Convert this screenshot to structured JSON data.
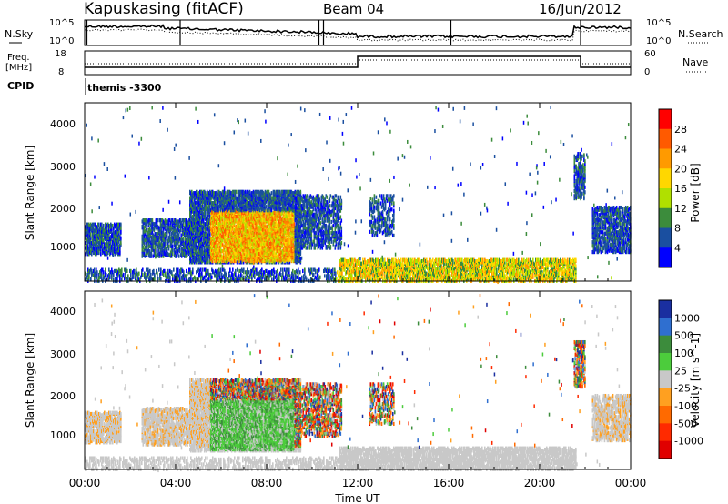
{
  "header": {
    "station": "Kapuskasing (fitACF)",
    "beam": "Beam 04",
    "date": "16/Jun/2012"
  },
  "aux_panels": {
    "nsky_label": "N.Sky",
    "nsky_ticks": [
      "10^5",
      "10^0"
    ],
    "nsearch_label": "N.Search",
    "nsearch_ticks": [
      "10^5",
      "10^0"
    ],
    "freq_label": "Freq.",
    "freq_unit": "[MHz]",
    "freq_ticks": [
      "18",
      "8"
    ],
    "nave_label": "Nave",
    "nave_ticks": [
      "60",
      "0"
    ],
    "cpid_label": "CPID",
    "cpid_value": "themis -3300"
  },
  "chart_data": [
    {
      "type": "heatmap",
      "quantity": "power",
      "ylabel": "Slant Range [km]",
      "xlabel": "Time UT",
      "xlim_hours": [
        0,
        24
      ],
      "ylim_km": [
        180,
        4500
      ],
      "y_ticks": [
        "4000",
        "3000",
        "2000",
        "1000"
      ],
      "colorbar": {
        "label": "Power [dB]",
        "ticks": [
          "28",
          "24",
          "20",
          "16",
          "12",
          "8",
          "4"
        ],
        "colors": [
          "#ff0000",
          "#ff5a00",
          "#ff9a00",
          "#ffd700",
          "#b0e000",
          "#3c8c3c",
          "#1a4fa0",
          "#0000ff"
        ]
      }
    },
    {
      "type": "heatmap",
      "quantity": "velocity",
      "ylabel": "Slant Range [km]",
      "xlabel": "Time UT",
      "xlim_hours": [
        0,
        24
      ],
      "ylim_km": [
        180,
        4500
      ],
      "y_ticks": [
        "4000",
        "3000",
        "2000",
        "1000"
      ],
      "colorbar": {
        "label": "Velocity [m s^-1]",
        "ticks": [
          "1000",
          "500",
          "100",
          "25",
          "-25",
          "-100",
          "-500",
          "-1000"
        ],
        "colors": [
          "#1a2fa0",
          "#2f6fd0",
          "#3c8c3c",
          "#4ccc3c",
          "#c8c8c8",
          "#ffa020",
          "#ff6a00",
          "#ff2a00",
          "#e00000"
        ]
      }
    }
  ],
  "x_ticks": [
    "00:00",
    "04:00",
    "08:00",
    "12:00",
    "16:00",
    "20:00",
    "00:00"
  ],
  "x_axis_label": "Time UT"
}
